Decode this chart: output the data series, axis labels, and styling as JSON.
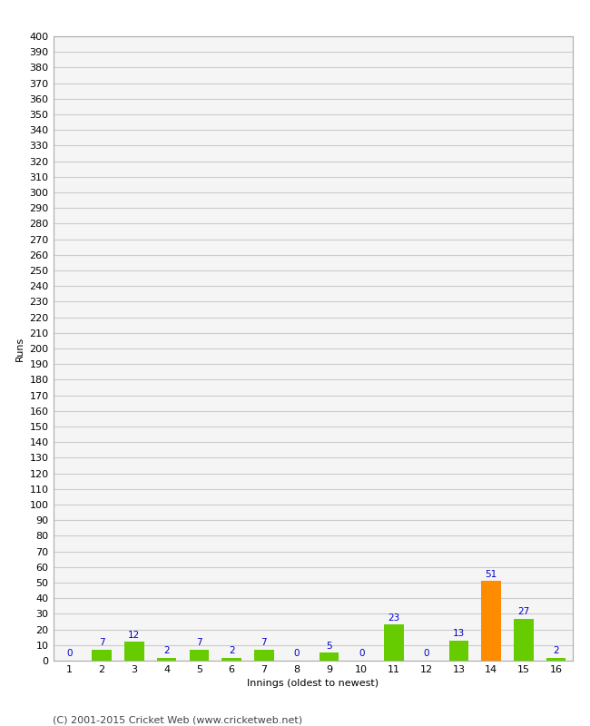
{
  "xlabel": "Innings (oldest to newest)",
  "ylabel": "Runs",
  "categories": [
    1,
    2,
    3,
    4,
    5,
    6,
    7,
    8,
    9,
    10,
    11,
    12,
    13,
    14,
    15,
    16
  ],
  "values": [
    0,
    7,
    12,
    2,
    7,
    2,
    7,
    0,
    5,
    0,
    23,
    0,
    13,
    51,
    27,
    2
  ],
  "bar_colors": [
    "#66cc00",
    "#66cc00",
    "#66cc00",
    "#66cc00",
    "#66cc00",
    "#66cc00",
    "#66cc00",
    "#66cc00",
    "#66cc00",
    "#66cc00",
    "#66cc00",
    "#66cc00",
    "#66cc00",
    "#ff8c00",
    "#66cc00",
    "#66cc00"
  ],
  "ylim": [
    0,
    400
  ],
  "yticks": [
    0,
    10,
    20,
    30,
    40,
    50,
    60,
    70,
    80,
    90,
    100,
    110,
    120,
    130,
    140,
    150,
    160,
    170,
    180,
    190,
    200,
    210,
    220,
    230,
    240,
    250,
    260,
    270,
    280,
    290,
    300,
    310,
    320,
    330,
    340,
    350,
    360,
    370,
    380,
    390,
    400
  ],
  "background_color": "#ffffff",
  "plot_bg_color": "#f5f5f5",
  "grid_color": "#cccccc",
  "label_color": "#0000cc",
  "footer": "(C) 2001-2015 Cricket Web (www.cricketweb.net)",
  "bar_width": 0.6,
  "axis_fontsize": 8,
  "label_fontsize": 7.5,
  "footer_fontsize": 8
}
